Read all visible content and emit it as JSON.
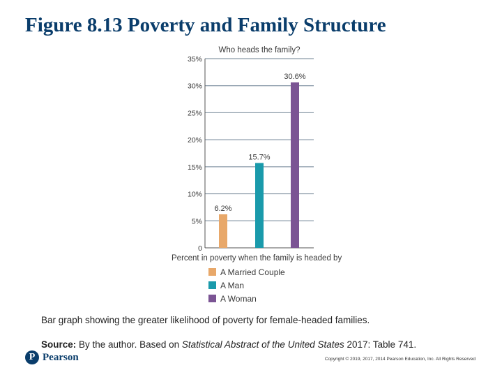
{
  "slide": {
    "title": "Figure 8.13 Poverty and Family Structure",
    "caption": "Bar graph showing the greater likelihood of poverty for female-headed families.",
    "source_label": "Source:",
    "source_pre": " By the author. Based on ",
    "source_italic": "Statistical Abstract of the United States",
    "source_post": " 2017: Table 741.",
    "logo_text": "Pearson",
    "copyright": "Copyright © 2019, 2017, 2014 Pearson Education, Inc. All Rights Reserved"
  },
  "chart_data": {
    "type": "bar",
    "title": "Who heads the family?",
    "xlabel": "Percent in poverty when the family is headed by",
    "ylabel": "",
    "ylim": [
      0,
      35
    ],
    "yticks": [
      0,
      5,
      10,
      15,
      20,
      25,
      30,
      35
    ],
    "ytick_labels": [
      "0",
      "5%",
      "10%",
      "15%",
      "20%",
      "25%",
      "30%",
      "35%"
    ],
    "grid": true,
    "categories": [
      "A Married Couple",
      "A Man",
      "A Woman"
    ],
    "values": [
      6.2,
      15.7,
      30.6
    ],
    "value_labels": [
      "6.2%",
      "15.7%",
      "30.6%"
    ],
    "colors": [
      "#e8a86a",
      "#1a9aab",
      "#7b5494"
    ],
    "legend": [
      "A Married Couple",
      "A Man",
      "A Woman"
    ]
  }
}
